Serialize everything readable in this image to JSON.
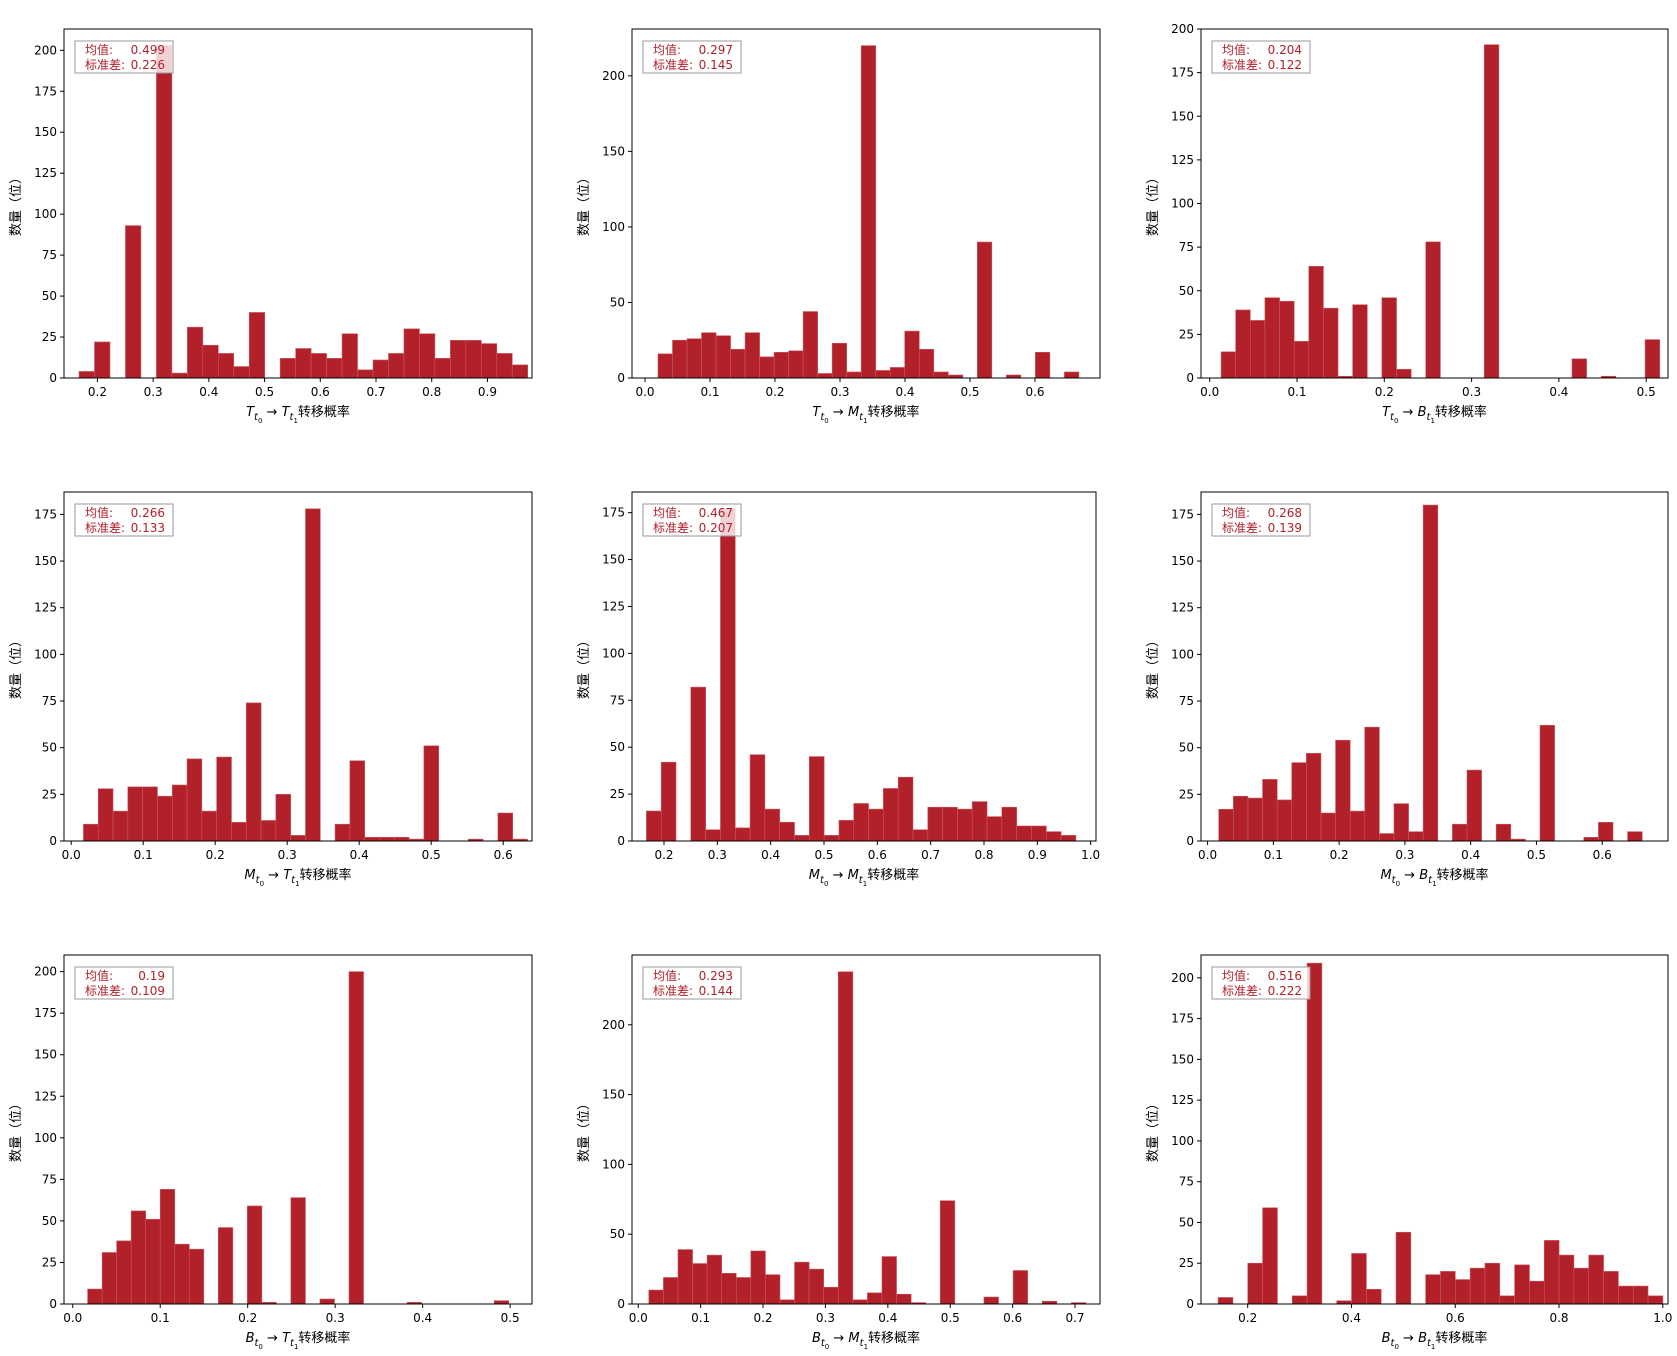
{
  "style": {
    "bar_color": "#b2202a",
    "bar_edge_color": "#c75a60",
    "stat_text_color": "#b2202a",
    "legend_border_color": "#999999"
  },
  "chart_data": [
    {
      "type": "bar",
      "xlabel": "T_t0 → T_t1 转移概率",
      "xlabel_parts": {
        "from_letter": "T",
        "to_letter": "T",
        "suffix": "转移概率"
      },
      "ylabel": "数量（位）",
      "stats": {
        "mean_label": "均值:",
        "mean_value": "0.499",
        "std_label": "标准差:",
        "std_value": "0.226"
      },
      "xlim": [
        0.14,
        0.98
      ],
      "ylim": [
        0,
        213
      ],
      "xticks": [
        0.2,
        0.3,
        0.4,
        0.5,
        0.6,
        0.7,
        0.8,
        0.9
      ],
      "xtick_labels": [
        "0.2",
        "0.3",
        "0.4",
        "0.5",
        "0.6",
        "0.7",
        "0.8",
        "0.9"
      ],
      "yticks": [
        0,
        25,
        50,
        75,
        100,
        125,
        150,
        175,
        200
      ],
      "bin_start": 0.167,
      "bin_width": 0.02777,
      "values": [
        4,
        22,
        0,
        93,
        0,
        203,
        3,
        31,
        20,
        15,
        7,
        40,
        0,
        12,
        18,
        15,
        12,
        27,
        5,
        11,
        15,
        30,
        27,
        12,
        23,
        23,
        21,
        15,
        8
      ]
    },
    {
      "type": "bar",
      "xlabel": "T_t0 → M_t1 转移概率",
      "xlabel_parts": {
        "from_letter": "T",
        "to_letter": "M",
        "suffix": "转移概率"
      },
      "ylabel": "数量（位）",
      "stats": {
        "mean_label": "均值:",
        "mean_value": "0.297",
        "std_label": "标准差:",
        "std_value": "0.145"
      },
      "xlim": [
        -0.02,
        0.7
      ],
      "ylim": [
        0,
        231
      ],
      "xticks": [
        0.0,
        0.1,
        0.2,
        0.3,
        0.4,
        0.5,
        0.6
      ],
      "xtick_labels": [
        "0.0",
        "0.1",
        "0.2",
        "0.3",
        "0.4",
        "0.5",
        "0.6"
      ],
      "yticks": [
        0,
        50,
        100,
        150,
        200
      ],
      "bin_start": 0.02,
      "bin_width": 0.02233,
      "values": [
        16,
        25,
        26,
        30,
        28,
        19,
        30,
        14,
        17,
        18,
        44,
        3,
        23,
        4,
        220,
        5,
        7,
        31,
        19,
        4,
        2,
        0,
        90,
        0,
        2,
        0,
        17,
        0,
        4
      ]
    },
    {
      "type": "bar",
      "xlabel": "T_t0 → B_t1 转移概率",
      "xlabel_parts": {
        "from_letter": "T",
        "to_letter": "B",
        "suffix": "转移概率"
      },
      "ylabel": "数量（位）",
      "stats": {
        "mean_label": "均值:",
        "mean_value": "0.204",
        "std_label": "标准差:",
        "std_value": "0.122"
      },
      "xlim": [
        -0.01,
        0.525
      ],
      "ylim": [
        0,
        200
      ],
      "xticks": [
        0.0,
        0.1,
        0.2,
        0.3,
        0.4,
        0.5
      ],
      "xtick_labels": [
        "0.0",
        "0.1",
        "0.2",
        "0.3",
        "0.4",
        "0.5"
      ],
      "yticks": [
        0,
        25,
        50,
        75,
        100,
        125,
        150,
        175,
        200
      ],
      "bin_start": 0.013,
      "bin_width": 0.01675,
      "values": [
        15,
        39,
        33,
        46,
        44,
        21,
        64,
        40,
        1,
        42,
        0,
        46,
        5,
        0,
        78,
        0,
        0,
        0,
        191,
        0,
        0,
        0,
        0,
        0,
        11,
        0,
        1,
        0,
        0,
        22
      ]
    },
    {
      "type": "bar",
      "xlabel": "M_t0 → T_t1 转移概率",
      "xlabel_parts": {
        "from_letter": "M",
        "to_letter": "T",
        "suffix": "转移概率"
      },
      "ylabel": "数量（位）",
      "stats": {
        "mean_label": "均值:",
        "mean_value": "0.266",
        "std_label": "标准差:",
        "std_value": "0.133"
      },
      "xlim": [
        -0.01,
        0.64
      ],
      "ylim": [
        0,
        187
      ],
      "xticks": [
        0.0,
        0.1,
        0.2,
        0.3,
        0.4,
        0.5,
        0.6
      ],
      "xtick_labels": [
        "0.0",
        "0.1",
        "0.2",
        "0.3",
        "0.4",
        "0.5",
        "0.6"
      ],
      "yticks": [
        0,
        25,
        50,
        75,
        100,
        125,
        150,
        175
      ],
      "bin_start": 0.017,
      "bin_width": 0.02056,
      "values": [
        9,
        28,
        16,
        29,
        29,
        24,
        30,
        44,
        16,
        45,
        10,
        74,
        11,
        25,
        3,
        178,
        0,
        9,
        43,
        2,
        2,
        2,
        1,
        51,
        0,
        0,
        1,
        0,
        15,
        1
      ]
    },
    {
      "type": "bar",
      "xlabel": "M_t0 → M_t1 转移概率",
      "xlabel_parts": {
        "from_letter": "M",
        "to_letter": "M",
        "suffix": "转移概率"
      },
      "ylabel": "数量（位）",
      "stats": {
        "mean_label": "均值:",
        "mean_value": "0.467",
        "std_label": "标准差:",
        "std_value": "0.207"
      },
      "xlim": [
        0.14,
        1.01
      ],
      "ylim": [
        0,
        186
      ],
      "xticks": [
        0.2,
        0.3,
        0.4,
        0.5,
        0.6,
        0.7,
        0.8,
        0.9,
        1.0
      ],
      "xtick_labels": [
        "0.2",
        "0.3",
        "0.4",
        "0.5",
        "0.6",
        "0.7",
        "0.8",
        "0.9",
        "1.0"
      ],
      "yticks": [
        0,
        25,
        50,
        75,
        100,
        125,
        150,
        175
      ],
      "bin_start": 0.167,
      "bin_width": 0.02777,
      "values": [
        16,
        42,
        0,
        82,
        6,
        177,
        7,
        46,
        17,
        10,
        3,
        45,
        3,
        11,
        20,
        17,
        28,
        34,
        6,
        18,
        18,
        17,
        21,
        13,
        18,
        8,
        8,
        5,
        3
      ]
    },
    {
      "type": "bar",
      "xlabel": "M_t0 → B_t1 转移概率",
      "xlabel_parts": {
        "from_letter": "M",
        "to_letter": "B",
        "suffix": "转移概率"
      },
      "ylabel": "数量（位）",
      "stats": {
        "mean_label": "均值:",
        "mean_value": "0.268",
        "std_label": "标准差:",
        "std_value": "0.139"
      },
      "xlim": [
        -0.01,
        0.7
      ],
      "ylim": [
        0,
        187
      ],
      "xticks": [
        0.0,
        0.1,
        0.2,
        0.3,
        0.4,
        0.5,
        0.6
      ],
      "xtick_labels": [
        "0.0",
        "0.1",
        "0.2",
        "0.3",
        "0.4",
        "0.5",
        "0.6"
      ],
      "yticks": [
        0,
        25,
        50,
        75,
        100,
        125,
        150,
        175
      ],
      "bin_start": 0.017,
      "bin_width": 0.0222,
      "values": [
        17,
        24,
        23,
        33,
        22,
        42,
        47,
        15,
        54,
        16,
        61,
        4,
        20,
        5,
        180,
        0,
        9,
        38,
        0,
        9,
        1,
        0,
        62,
        0,
        0,
        2,
        10,
        0,
        5
      ]
    },
    {
      "type": "bar",
      "xlabel": "B_t0 → T_t1 转移概率",
      "xlabel_parts": {
        "from_letter": "B",
        "to_letter": "T",
        "suffix": "转移概率"
      },
      "ylabel": "数量（位）",
      "stats": {
        "mean_label": "均值:",
        "mean_value": "0.19",
        "std_label": "标准差:",
        "std_value": "0.109"
      },
      "xlim": [
        -0.01,
        0.525
      ],
      "ylim": [
        0,
        210
      ],
      "xticks": [
        0.0,
        0.1,
        0.2,
        0.3,
        0.4,
        0.5
      ],
      "xtick_labels": [
        "0.0",
        "0.1",
        "0.2",
        "0.3",
        "0.4",
        "0.5"
      ],
      "yticks": [
        0,
        25,
        50,
        75,
        100,
        125,
        150,
        175,
        200
      ],
      "bin_start": 0.017,
      "bin_width": 0.0166,
      "values": [
        9,
        31,
        38,
        56,
        51,
        69,
        36,
        33,
        0,
        46,
        0,
        59,
        1,
        0,
        64,
        0,
        3,
        0,
        200,
        0,
        0,
        0,
        1,
        0,
        0,
        0,
        0,
        0,
        2
      ]
    },
    {
      "type": "bar",
      "xlabel": "B_t0 → M_t1 转移概率",
      "xlabel_parts": {
        "from_letter": "B",
        "to_letter": "M",
        "suffix": "转移概率"
      },
      "ylabel": "数量（位）",
      "stats": {
        "mean_label": "均值:",
        "mean_value": "0.293",
        "std_label": "标准差:",
        "std_value": "0.144"
      },
      "xlim": [
        -0.01,
        0.74
      ],
      "ylim": [
        0,
        250
      ],
      "xticks": [
        0.0,
        0.1,
        0.2,
        0.3,
        0.4,
        0.5,
        0.6,
        0.7
      ],
      "xtick_labels": [
        "0.0",
        "0.1",
        "0.2",
        "0.3",
        "0.4",
        "0.5",
        "0.6",
        "0.7"
      ],
      "yticks": [
        0,
        50,
        100,
        150,
        200
      ],
      "bin_start": 0.017,
      "bin_width": 0.02335,
      "values": [
        10,
        19,
        39,
        29,
        35,
        22,
        19,
        38,
        21,
        3,
        30,
        25,
        12,
        238,
        3,
        8,
        34,
        7,
        1,
        0,
        74,
        0,
        0,
        5,
        0,
        24,
        0,
        2,
        0,
        1
      ]
    },
    {
      "type": "bar",
      "xlabel": "B_t0 → B_t1 转移概率",
      "xlabel_parts": {
        "from_letter": "B",
        "to_letter": "B",
        "suffix": "转移概率"
      },
      "ylabel": "数量（位）",
      "stats": {
        "mean_label": "均值:",
        "mean_value": "0.516",
        "std_label": "标准差:",
        "std_value": "0.222"
      },
      "xlim": [
        0.11,
        1.01
      ],
      "ylim": [
        0,
        214
      ],
      "xticks": [
        0.2,
        0.4,
        0.6,
        0.8,
        1.0
      ],
      "xtick_labels": [
        "0.2",
        "0.4",
        "0.6",
        "0.8",
        "1.0"
      ],
      "yticks": [
        0,
        25,
        50,
        75,
        100,
        125,
        150,
        175,
        200
      ],
      "bin_start": 0.143,
      "bin_width": 0.02857,
      "values": [
        4,
        0,
        25,
        59,
        0,
        5,
        209,
        0,
        2,
        31,
        9,
        0,
        44,
        0,
        18,
        20,
        15,
        22,
        25,
        5,
        24,
        14,
        39,
        30,
        22,
        30,
        20,
        11,
        11,
        5
      ]
    }
  ]
}
